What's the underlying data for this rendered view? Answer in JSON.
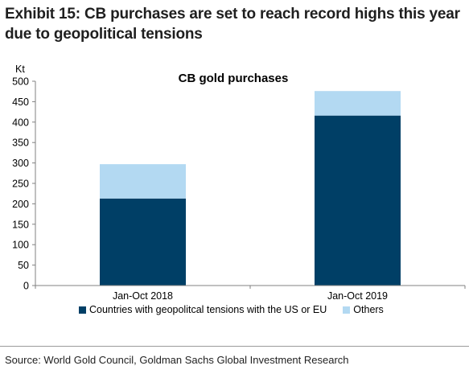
{
  "exhibit": {
    "title": "Exhibit 15: CB purchases are set to reach record highs this year due to geopolitical tensions"
  },
  "source": "Source: World Gold Council, Goldman Sachs Global Investment Research",
  "colors": {
    "dark": "#003f66",
    "light": "#b3d9f2",
    "axis": "#808080"
  },
  "chart_data": {
    "type": "bar",
    "stacked": true,
    "title": "CB gold purchases",
    "ylabel": "Kt",
    "xlabel": "",
    "categories": [
      "Jan-Oct 2018",
      "Jan-Oct 2019"
    ],
    "series": [
      {
        "name": "Countries with geopolitcal tensions with the US or EU",
        "values": [
          213,
          416
        ],
        "color": "#003f66"
      },
      {
        "name": "Others",
        "values": [
          84,
          60
        ],
        "color": "#b3d9f2"
      }
    ],
    "ylim": [
      0,
      500
    ],
    "yticks": [
      0,
      50,
      100,
      150,
      200,
      250,
      300,
      350,
      400,
      450,
      500
    ],
    "grid": false,
    "legend_position": "bottom"
  }
}
